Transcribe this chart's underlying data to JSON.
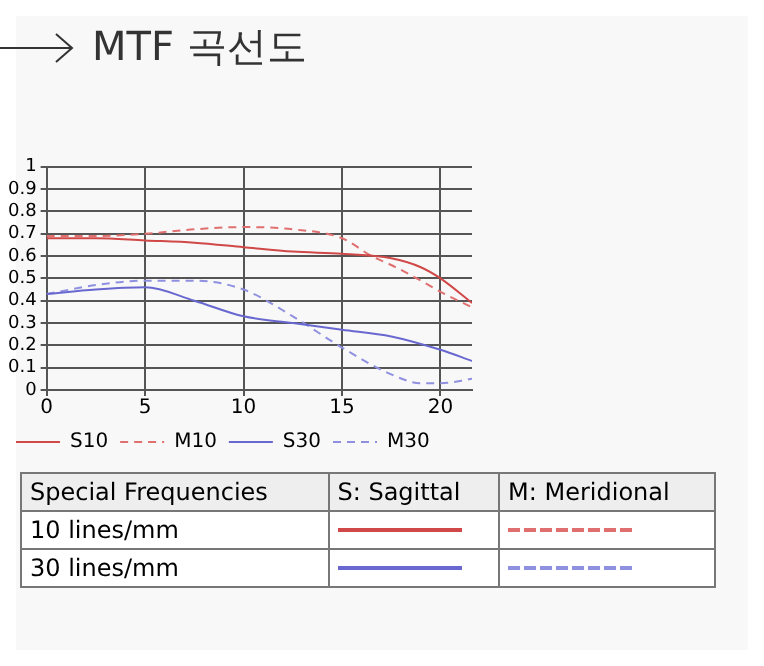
{
  "chart_data": {
    "type": "line",
    "title": "MTF 곡선도",
    "xlim": [
      0,
      21.6
    ],
    "xticks": [
      0,
      5,
      10,
      15,
      20
    ],
    "ylim": [
      0,
      1
    ],
    "yticks": [
      0,
      0.1,
      0.2,
      0.3,
      0.4,
      0.5,
      0.6,
      0.7,
      0.8,
      0.9,
      1
    ],
    "grid": true,
    "legend": "bottom",
    "marker": "none",
    "series": [
      {
        "name": "S10",
        "color": "#d04848",
        "line_style": "solid",
        "x": [
          0,
          2.5,
          5,
          7.5,
          10,
          12.5,
          15,
          17.5,
          19,
          20,
          21.6
        ],
        "values": [
          0.68,
          0.68,
          0.67,
          0.66,
          0.64,
          0.62,
          0.61,
          0.59,
          0.55,
          0.5,
          0.39
        ]
      },
      {
        "name": "M10",
        "color": "#e07070",
        "line_style": "dashed",
        "x": [
          0,
          2.5,
          5,
          7.5,
          10,
          12.5,
          15,
          16.5,
          17.5,
          19,
          20,
          21.6
        ],
        "values": [
          0.69,
          0.69,
          0.7,
          0.72,
          0.73,
          0.72,
          0.68,
          0.6,
          0.56,
          0.49,
          0.44,
          0.37
        ]
      },
      {
        "name": "S30",
        "color": "#6868d0",
        "line_style": "solid",
        "x": [
          0,
          2.5,
          5,
          7.5,
          10,
          12.5,
          15,
          17.5,
          20,
          21.6
        ],
        "values": [
          0.43,
          0.45,
          0.46,
          0.4,
          0.33,
          0.3,
          0.27,
          0.24,
          0.18,
          0.13
        ]
      },
      {
        "name": "M30",
        "color": "#9090e0",
        "line_style": "dashed",
        "x": [
          0,
          2.5,
          5,
          7.5,
          10,
          12.5,
          15,
          17.5,
          19,
          20,
          21.6
        ],
        "values": [
          0.43,
          0.47,
          0.49,
          0.49,
          0.45,
          0.33,
          0.19,
          0.07,
          0.03,
          0.03,
          0.05
        ]
      }
    ],
    "annotations": [
      "Special Frequencies",
      "S: Sagittal",
      "M: Meridional",
      "10 lines/mm",
      "30 lines/mm"
    ]
  }
}
